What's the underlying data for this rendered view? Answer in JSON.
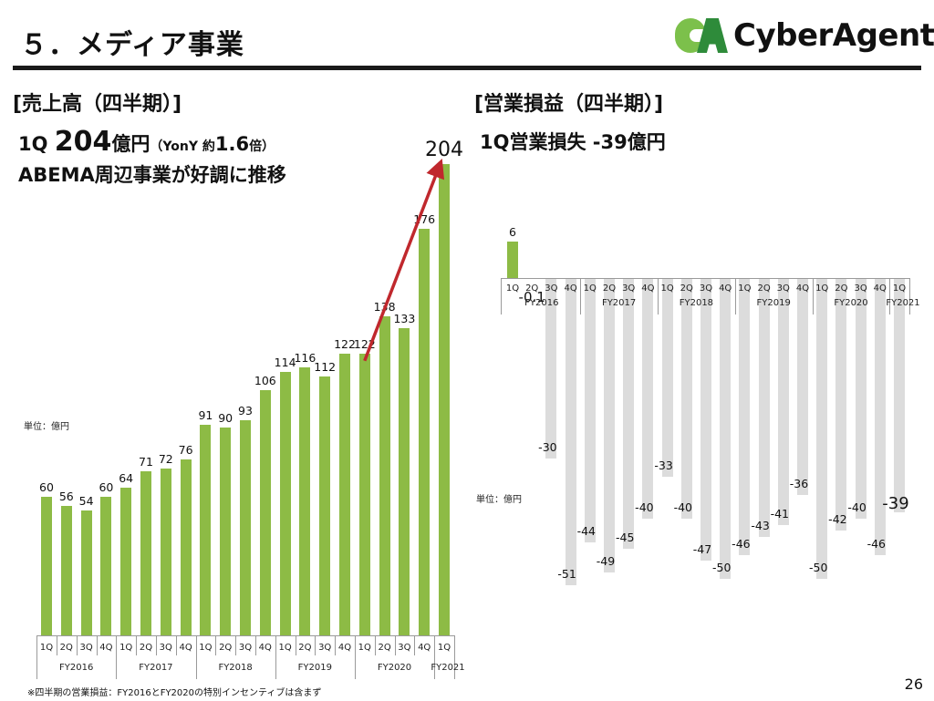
{
  "header": {
    "title": "５．メディア事業",
    "logo_text": "CyberAgent",
    "logo_reg": "®"
  },
  "left_panel": {
    "section_title": "[売上高（四半期）]",
    "headline_prefix": "1Q ",
    "headline_value": "204",
    "headline_unit": "億円",
    "headline_note_open": "（YonY 約",
    "headline_ratio": "1.6",
    "headline_note_close": "倍）",
    "subheadline": "ABEMA周辺事業が好調に推移",
    "unit_label": "単位：億円"
  },
  "right_panel": {
    "section_title": "[営業損益（四半期）]",
    "headline": "1Q営業損失 -39億円",
    "unit_label": "単位：億円"
  },
  "footer": {
    "note": "※四半期の営業損益：FY2016とFY2020の特別インセンティブは含まず",
    "page_number": "26"
  },
  "colors": {
    "revenue_bar": "#8dbb45",
    "loss_bar": "#dcdcdc",
    "profit_bar": "#8dbb45",
    "arrow": "#c0282d",
    "logo_light": "#7cc04b",
    "logo_dark": "#2e8b3a"
  },
  "chart_data": [
    {
      "type": "bar",
      "title": "売上高（四半期）",
      "ylabel": "単位：億円",
      "xlabel": "",
      "categories": [
        "FY2016 1Q",
        "FY2016 2Q",
        "FY2016 3Q",
        "FY2016 4Q",
        "FY2017 1Q",
        "FY2017 2Q",
        "FY2017 3Q",
        "FY2017 4Q",
        "FY2018 1Q",
        "FY2018 2Q",
        "FY2018 3Q",
        "FY2018 4Q",
        "FY2019 1Q",
        "FY2019 2Q",
        "FY2019 3Q",
        "FY2019 4Q",
        "FY2020 1Q",
        "FY2020 2Q",
        "FY2020 3Q",
        "FY2020 4Q",
        "FY2021 1Q"
      ],
      "quarters": [
        "1Q",
        "2Q",
        "3Q",
        "4Q",
        "1Q",
        "2Q",
        "3Q",
        "4Q",
        "1Q",
        "2Q",
        "3Q",
        "4Q",
        "1Q",
        "2Q",
        "3Q",
        "4Q",
        "1Q",
        "2Q",
        "3Q",
        "4Q",
        "1Q"
      ],
      "fiscal_years": [
        "FY2016",
        "FY2017",
        "FY2018",
        "FY2019",
        "FY2020",
        "FY2021"
      ],
      "values": [
        60,
        56,
        54,
        60,
        64,
        71,
        72,
        76,
        91,
        90,
        93,
        106,
        114,
        116,
        112,
        122,
        122,
        138,
        133,
        176,
        204
      ],
      "value_labels": [
        "60",
        "56",
        "54",
        "60",
        "64",
        "71",
        "72",
        "76",
        "91",
        "90",
        "93",
        "106",
        "114",
        "116",
        "112",
        "122",
        "122",
        "138",
        "133",
        "176",
        "204"
      ],
      "annotations": [
        "Red arrow from FY2020 1Q (122) to FY2021 1Q (204)"
      ],
      "ylim": [
        0,
        210
      ],
      "grid": false,
      "legend": "none"
    },
    {
      "type": "bar",
      "title": "営業損益（四半期）",
      "ylabel": "単位：億円",
      "xlabel": "",
      "categories": [
        "FY2016 1Q",
        "FY2016 2Q",
        "FY2016 3Q",
        "FY2016 4Q",
        "FY2017 1Q",
        "FY2017 2Q",
        "FY2017 3Q",
        "FY2017 4Q",
        "FY2018 1Q",
        "FY2018 2Q",
        "FY2018 3Q",
        "FY2018 4Q",
        "FY2019 1Q",
        "FY2019 2Q",
        "FY2019 3Q",
        "FY2019 4Q",
        "FY2020 1Q",
        "FY2020 2Q",
        "FY2020 3Q",
        "FY2020 4Q",
        "FY2021 1Q"
      ],
      "quarters": [
        "1Q",
        "2Q",
        "3Q",
        "4Q",
        "1Q",
        "2Q",
        "3Q",
        "4Q",
        "1Q",
        "2Q",
        "3Q",
        "4Q",
        "1Q",
        "2Q",
        "3Q",
        "4Q",
        "1Q",
        "2Q",
        "3Q",
        "4Q",
        "1Q"
      ],
      "fiscal_years": [
        "FY2016",
        "FY2017",
        "FY2018",
        "FY2019",
        "FY2020",
        "FY2021"
      ],
      "values": [
        6,
        -0.1,
        -30,
        -51,
        -44,
        -49,
        -45,
        -40,
        -33,
        -40,
        -47,
        -50,
        -46,
        -43,
        -41,
        -36,
        -50,
        -42,
        -40,
        -46,
        -39
      ],
      "value_labels": [
        "6",
        "-0.1",
        "-30",
        "-51",
        "-44",
        "-49",
        "-45",
        "-40",
        "-33",
        "-40",
        "-47",
        "-50",
        "-46",
        "-43",
        "-41",
        "-36",
        "-50",
        "-42",
        "-40",
        "-46",
        "-39"
      ],
      "ylim": [
        -55,
        10
      ],
      "grid": false,
      "legend": "none"
    }
  ]
}
